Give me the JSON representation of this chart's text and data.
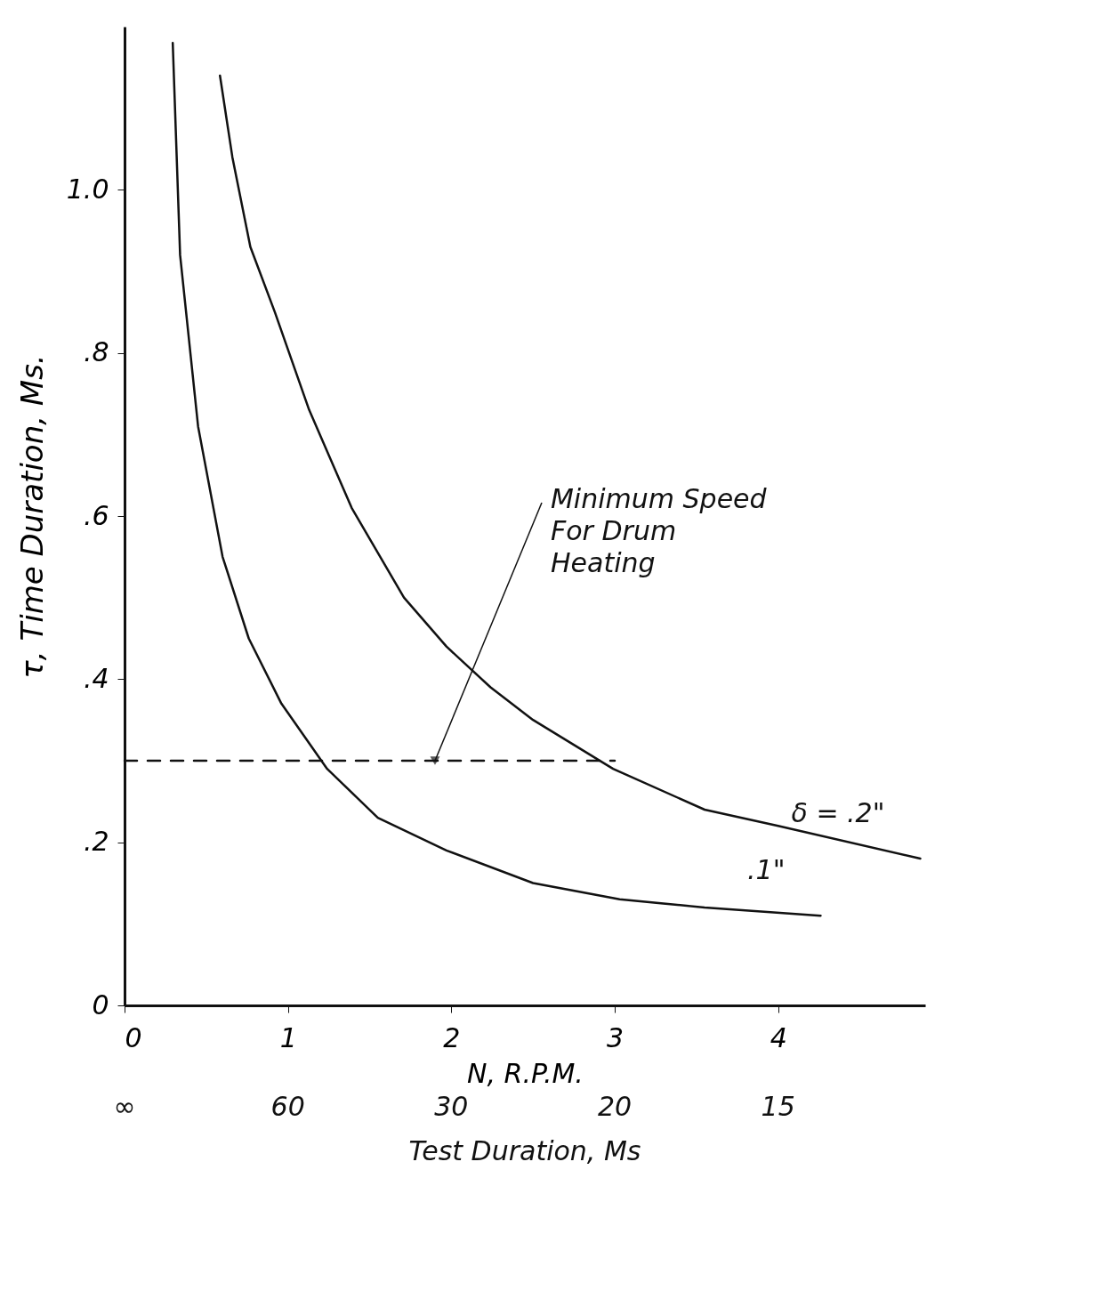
{
  "chart_data": {
    "type": "line",
    "xlabel": "N, R.P.M.",
    "ylabel": "τ, Time Duration, Ms.",
    "xlim": [
      0,
      4.9
    ],
    "ylim": [
      0,
      1.2
    ],
    "xticks": [
      0,
      1,
      2,
      3,
      4
    ],
    "yticks": [
      {
        "value": 0,
        "label": "0"
      },
      {
        "value": 0.2,
        "label": ".2"
      },
      {
        "value": 0.4,
        "label": ".4"
      },
      {
        "value": 0.6,
        "label": ".6"
      },
      {
        "value": 0.8,
        "label": ".8"
      },
      {
        "value": 1.0,
        "label": "1.0"
      }
    ],
    "grid": false,
    "marker": "none",
    "series": [
      {
        "name": "δ = .2\"",
        "color": "#111111",
        "x": [
          0.584,
          0.66,
          0.77,
          0.92,
          1.13,
          1.39,
          1.71,
          1.97,
          2.24,
          2.5,
          2.99,
          3.55,
          4.0,
          4.87
        ],
        "values": [
          1.14,
          1.04,
          0.93,
          0.85,
          0.73,
          0.61,
          0.5,
          0.44,
          0.39,
          0.35,
          0.29,
          0.24,
          0.22,
          0.18
        ]
      },
      {
        "name": ".1\"",
        "color": "#111111",
        "x": [
          0.295,
          0.34,
          0.45,
          0.6,
          0.76,
          0.96,
          1.24,
          1.55,
          1.97,
          2.5,
          3.03,
          3.55,
          4.26
        ],
        "values": [
          1.18,
          0.92,
          0.71,
          0.55,
          0.45,
          0.37,
          0.29,
          0.23,
          0.19,
          0.15,
          0.13,
          0.12,
          0.11
        ]
      },
      {
        "type": "line",
        "line_style": "dashed",
        "color": "#111111",
        "x": [
          0,
          3
        ],
        "values": [
          0.3,
          0.3
        ]
      }
    ],
    "annotations": [
      {
        "text": "Minimum Speed For Drum Heating",
        "x": 1.9,
        "y": 0.3
      },
      "∞",
      "60",
      "30",
      "20",
      "15",
      "Test Duration, Ms"
    ]
  }
}
